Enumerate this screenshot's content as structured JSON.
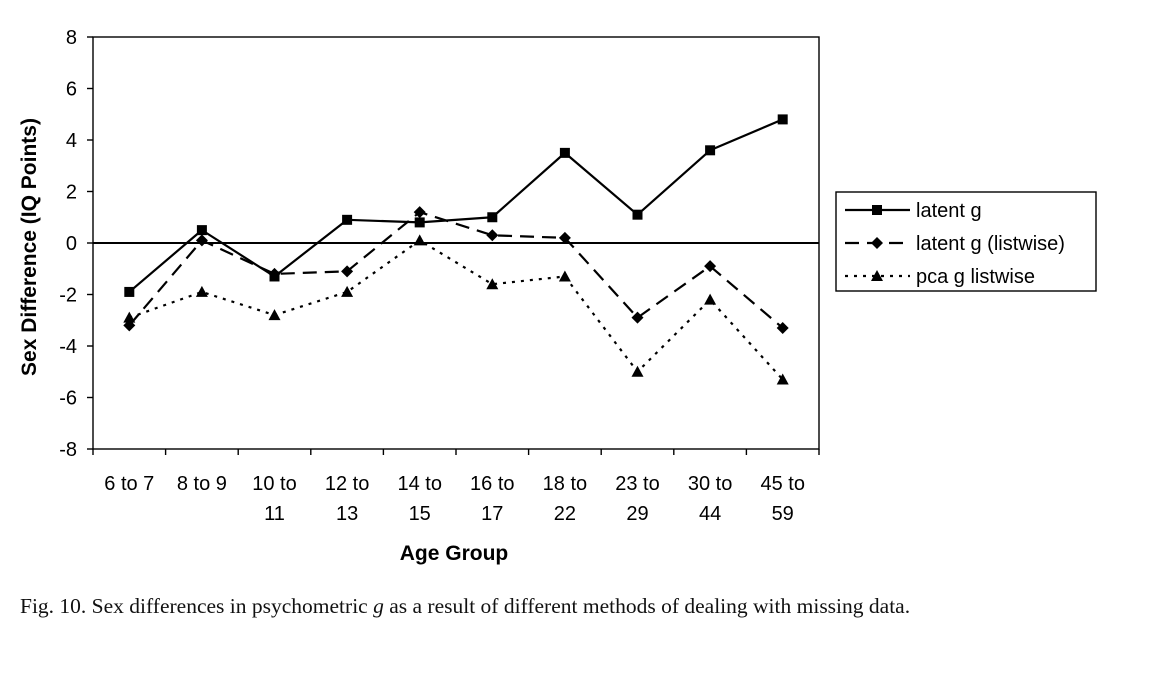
{
  "chart_data": {
    "type": "line",
    "categories": [
      [
        "6 to 7"
      ],
      [
        "8 to 9"
      ],
      [
        "10 to",
        "11"
      ],
      [
        "12 to",
        "13"
      ],
      [
        "14 to",
        "15"
      ],
      [
        "16 to",
        "17"
      ],
      [
        "18 to",
        "22"
      ],
      [
        "23 to",
        "29"
      ],
      [
        "30 to",
        "44"
      ],
      [
        "45 to",
        "59"
      ]
    ],
    "series": [
      {
        "name": "latent g",
        "line_style": "solid",
        "marker": "square",
        "values": [
          -1.9,
          0.5,
          -1.3,
          0.9,
          0.8,
          1.0,
          3.5,
          1.1,
          3.6,
          4.8
        ]
      },
      {
        "name": "latent g (listwise)",
        "line_style": "dashed",
        "marker": "diamond",
        "values": [
          -3.2,
          0.1,
          -1.2,
          -1.1,
          1.2,
          0.3,
          0.2,
          -2.9,
          -0.9,
          -3.3
        ]
      },
      {
        "name": "pca g listwise",
        "line_style": "dotted",
        "marker": "triangle",
        "values": [
          -2.9,
          -1.9,
          -2.8,
          -1.9,
          0.1,
          -1.6,
          -1.3,
          -5.0,
          -2.2,
          -5.3
        ]
      }
    ],
    "xlabel": "Age Group",
    "ylabel": "Sex Difference (IQ Points)",
    "ylim": [
      -8,
      8
    ],
    "yticks": [
      8,
      6,
      4,
      2,
      0,
      -2,
      -4,
      -6,
      -8
    ],
    "grid": false,
    "zero_line": true,
    "legend_position": "right",
    "colors": {
      "line": "#000000",
      "background": "#ffffff"
    }
  },
  "caption": {
    "prefix": "Fig. 10. Sex differences in psychometric ",
    "italic": "g",
    "suffix": " as a result of different methods of dealing with missing data."
  }
}
